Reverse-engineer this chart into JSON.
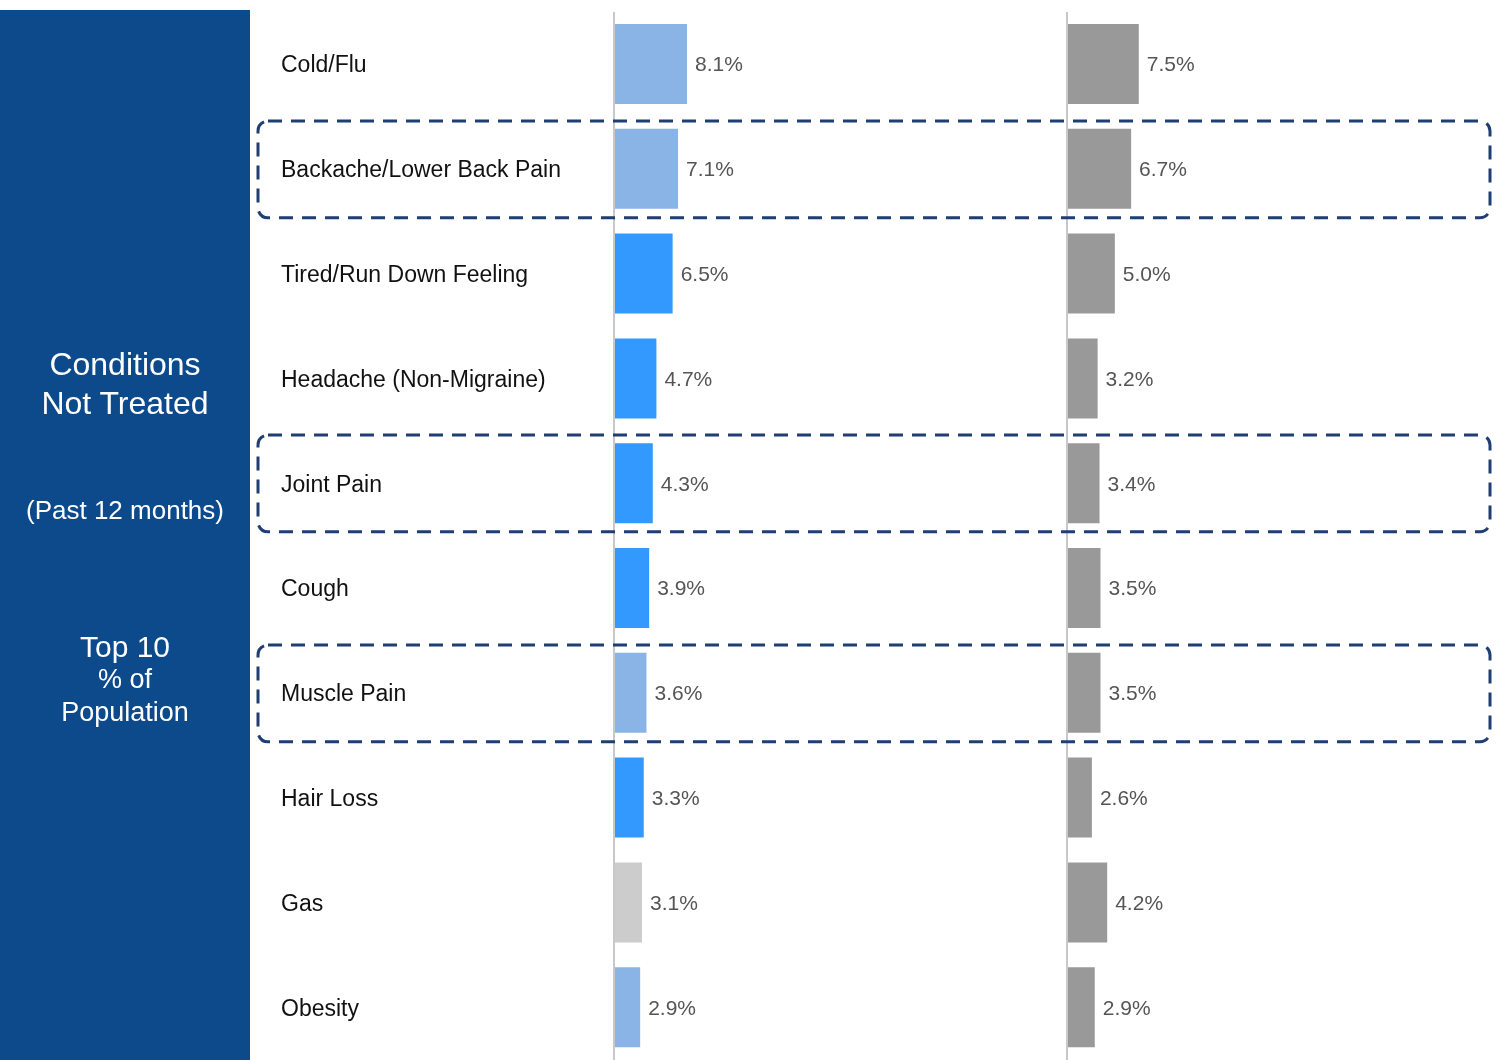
{
  "chart_data": [
    {
      "type": "bar",
      "orientation": "horizontal",
      "title": "Conditions Not Treated",
      "subtitle": "(Past 12 months)",
      "annotations": [
        "Top 10",
        "% of",
        "Population"
      ],
      "categories": [
        "Cold/Flu",
        "Backache/Lower Back Pain",
        "Tired/Run Down Feeling",
        "Headache (Non-Migraine)",
        "Joint Pain",
        "Cough",
        "Muscle Pain",
        "Hair Loss",
        "Gas",
        "Obesity"
      ],
      "values": [
        8.1,
        7.1,
        6.5,
        4.7,
        4.3,
        3.9,
        3.6,
        3.3,
        3.1,
        2.9
      ],
      "value_labels": [
        "8.1%",
        "7.1%",
        "6.5%",
        "4.7%",
        "4.3%",
        "3.9%",
        "3.6%",
        "3.3%",
        "3.1%",
        "2.9%"
      ],
      "colors": [
        "#8ab4e6",
        "#8ab4e6",
        "#3399ff",
        "#3399ff",
        "#3399ff",
        "#3399ff",
        "#8ab4e6",
        "#3399ff",
        "#cccccc",
        "#8ab4e6"
      ],
      "tick_labels": "y"
    },
    {
      "type": "bar",
      "orientation": "horizontal",
      "categories": [
        null,
        null,
        null,
        null,
        null,
        null,
        null,
        null,
        null,
        null
      ],
      "values": [
        7.5,
        6.7,
        5.0,
        3.2,
        3.4,
        3.5,
        3.5,
        2.6,
        4.2,
        2.9
      ],
      "value_labels": [
        "7.5%",
        "6.7%",
        "5.0%",
        "3.2%",
        "3.4%",
        "3.5%",
        "3.5%",
        "2.6%",
        "4.2%",
        "2.9%"
      ],
      "color": "#999999",
      "tick_labels": false
    }
  ]
}
